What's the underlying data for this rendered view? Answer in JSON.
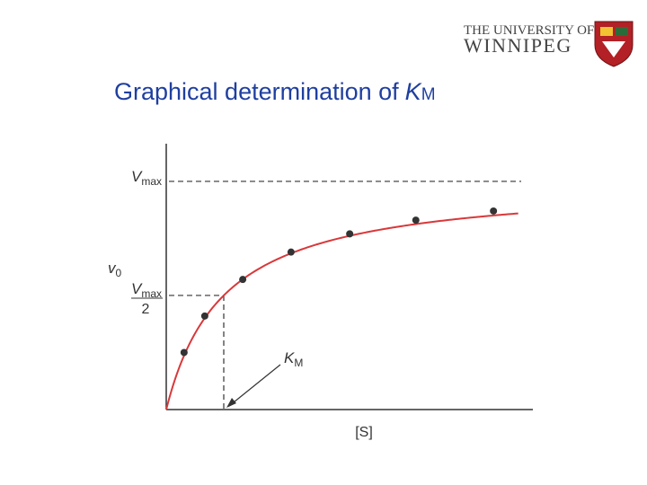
{
  "header": {
    "logo": {
      "line1": "THE UNIVERSITY OF",
      "line2": "WINNIPEG"
    }
  },
  "chart_data": {
    "type": "scatter",
    "title": {
      "text": "Graphical determination of",
      "symbol": "K",
      "subscript": "M"
    },
    "y_label": {
      "symbol": "v",
      "subscript": "0"
    },
    "x_label": "[S]",
    "x": [
      0.31,
      0.67,
      1.33,
      2.17,
      3.19,
      4.34,
      5.69
    ],
    "values": [
      0.25,
      0.41,
      0.57,
      0.69,
      0.77,
      0.83,
      0.87
    ],
    "color": "#333333",
    "curve": {
      "vmax": 1,
      "km": 1,
      "color": "#d9383a"
    },
    "y_references": [
      {
        "value": 1,
        "symbol": "V",
        "subscript": "max"
      },
      {
        "value": 0.5,
        "symbol": "V",
        "subscript": "max",
        "denominator": "2"
      }
    ],
    "x_references": [
      {
        "value": 1,
        "symbol": "K",
        "subscript": "M"
      }
    ],
    "xlim": [
      0,
      6.375
    ],
    "ylim": [
      0,
      1.165
    ]
  }
}
